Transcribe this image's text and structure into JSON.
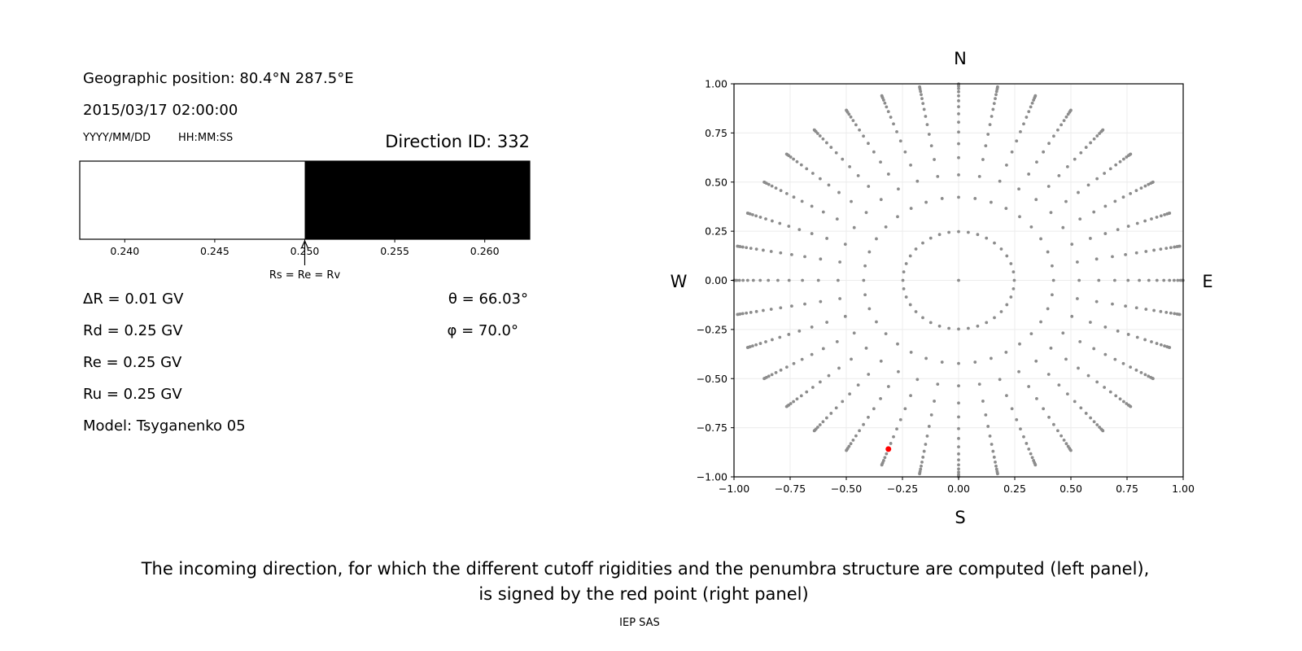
{
  "left_panel": {
    "geo_position": "Geographic position: 80.4°N 287.5°E",
    "datetime": "2015/03/17 02:00:00",
    "date_format": "YYYY/MM/DD",
    "time_format": "HH:MM:SS",
    "direction_id": "Direction ID: 332",
    "params": [
      "ΔR = 0.01 GV",
      "Rd = 0.25 GV",
      "Re = 0.25 GV",
      "Ru = 0.25 GV",
      "Model: Tsyganenko 05"
    ],
    "theta": "θ = 66.03°",
    "phi": "φ = 70.0°",
    "bar_annotation": "Rs = Re = Rv"
  },
  "chart_data": [
    {
      "type": "bar",
      "description_role": "penumbra structure",
      "xlim": [
        0.2375,
        0.2625
      ],
      "xticks": [
        "0.240",
        "0.245",
        "0.250",
        "0.255",
        "0.260"
      ],
      "segments": [
        {
          "from": 0.2375,
          "to": 0.25,
          "color": "#ffffff"
        },
        {
          "from": 0.25,
          "to": 0.2625,
          "color": "#000000"
        }
      ],
      "annotation_x": 0.25
    },
    {
      "type": "scatter",
      "xlim": [
        -1,
        1
      ],
      "ylim": [
        -1,
        1
      ],
      "grid": true,
      "xticks": [
        "−1.00",
        "−0.75",
        "−0.50",
        "−0.25",
        "0.00",
        "0.25",
        "0.50",
        "0.75",
        "1.00"
      ],
      "yticks": [
        "−1.00",
        "−0.75",
        "−0.50",
        "−0.25",
        "0.00",
        "0.25",
        "0.50",
        "0.75",
        "1.00"
      ],
      "compass": {
        "top": "N",
        "bottom": "S",
        "left": "W",
        "right": "E"
      },
      "directions_grid": {
        "center_point": true,
        "azimuth_step_deg": 10,
        "cos_zenith_rings": 16,
        "cos_zenith_step": 0.0625
      },
      "point_color": "#8c8c8c",
      "highlight": {
        "theta_deg": 66.03,
        "phi_deg": 70.0,
        "color": "#ff0000"
      }
    }
  ],
  "caption": {
    "line1": "The incoming direction, for which the different cutoff rigidities and the penumbra structure are computed (left panel),",
    "line2": "is signed by the red point (right panel)",
    "credit": "IEP SAS"
  }
}
